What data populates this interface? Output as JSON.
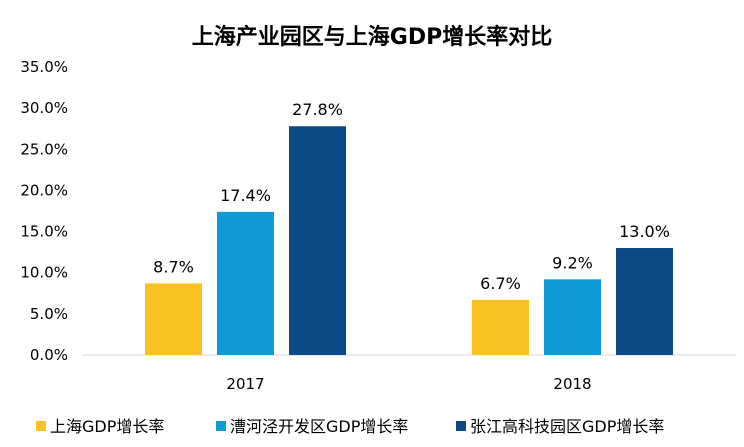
{
  "chart_data": {
    "type": "bar",
    "title": "上海产业园区与上海GDP增长率对比",
    "categories": [
      "2017",
      "2018"
    ],
    "series": [
      {
        "name": "上海GDP增长率",
        "values": [
          8.7,
          6.7
        ],
        "labels": [
          "8.7%",
          "6.7%"
        ],
        "color": "#F9C221"
      },
      {
        "name": "漕河泾开发区GDP增长率",
        "values": [
          17.4,
          9.2
        ],
        "labels": [
          "17.4%",
          "9.2%"
        ],
        "color": "#0F9BD7"
      },
      {
        "name": "张江高科技园区GDP增长率",
        "values": [
          27.8,
          13.0
        ],
        "labels": [
          "27.8%",
          "13.0%"
        ],
        "color": "#0C4A87"
      }
    ],
    "ylim": [
      0,
      35
    ],
    "yticks": [
      0,
      5,
      10,
      15,
      20,
      25,
      30,
      35
    ],
    "ytick_labels": [
      "0.0%",
      "5.0%",
      "10.0%",
      "15.0%",
      "20.0%",
      "25.0%",
      "30.0%",
      "35.0%"
    ],
    "xlabel": "",
    "ylabel": "",
    "grid": false,
    "legend_position": "bottom"
  }
}
